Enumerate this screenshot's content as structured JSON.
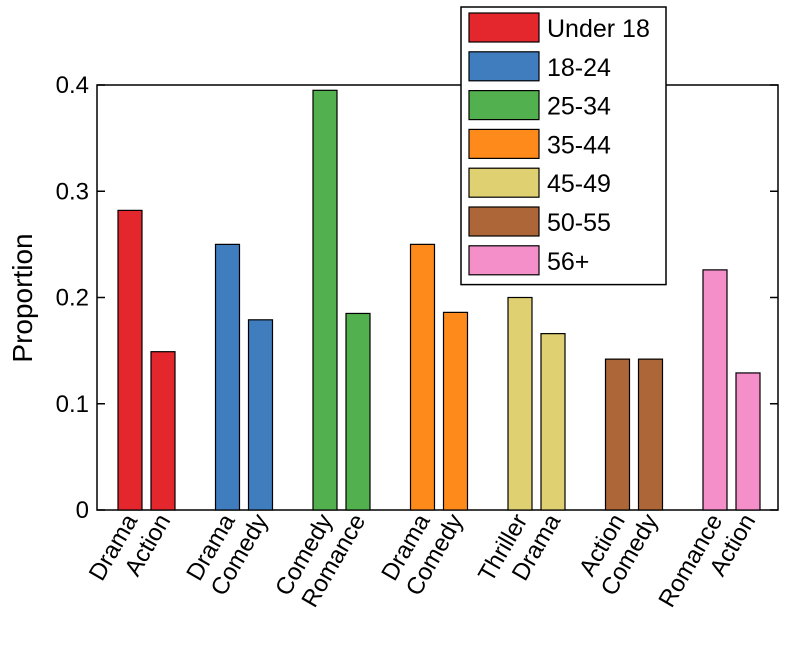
{
  "chart_data": {
    "type": "bar",
    "title": "",
    "xlabel": "",
    "ylabel": "Proportion",
    "ylim": [
      0,
      0.4
    ],
    "yticks": [
      0,
      0.1,
      0.2,
      0.3,
      0.4
    ],
    "ytick_labels": [
      "0",
      "0.1",
      "0.2",
      "0.3",
      "0.4"
    ],
    "grid": false,
    "legend_position": "top-right",
    "series": [
      {
        "name": "Under 18",
        "color": "#e3272c",
        "categories": [
          "Drama",
          "Action"
        ],
        "values": [
          0.282,
          0.149
        ]
      },
      {
        "name": "18-24",
        "color": "#3f7dbf",
        "categories": [
          "Drama",
          "Comedy"
        ],
        "values": [
          0.25,
          0.179
        ]
      },
      {
        "name": "25-34",
        "color": "#52b04e",
        "categories": [
          "Comedy",
          "Romance"
        ],
        "values": [
          0.395,
          0.185
        ]
      },
      {
        "name": "35-44",
        "color": "#fd8a1a",
        "categories": [
          "Drama",
          "Comedy"
        ],
        "values": [
          0.25,
          0.186
        ]
      },
      {
        "name": "45-49",
        "color": "#dfd072",
        "categories": [
          "Thriller",
          "Drama"
        ],
        "values": [
          0.2,
          0.166
        ]
      },
      {
        "name": "50-55",
        "color": "#ad6638",
        "categories": [
          "Action",
          "Comedy"
        ],
        "values": [
          0.142,
          0.142
        ]
      },
      {
        "name": "56+",
        "color": "#f48fc9",
        "categories": [
          "Romance",
          "Action"
        ],
        "values": [
          0.226,
          0.129
        ]
      }
    ]
  }
}
